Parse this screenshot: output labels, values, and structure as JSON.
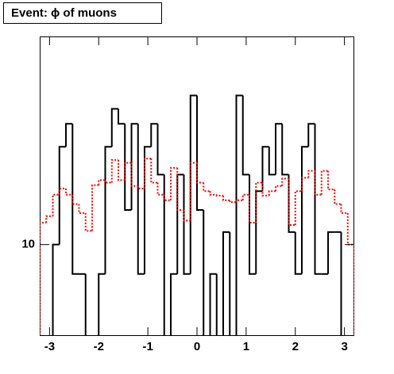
{
  "chart_data": {
    "type": "histogram",
    "title": "Event: ϕ of muons",
    "log_y": true,
    "bins": [
      -3.2,
      -3.067,
      -2.933,
      -2.8,
      -2.667,
      -2.533,
      -2.4,
      -2.267,
      -2.133,
      -2.0,
      -1.867,
      -1.733,
      -1.6,
      -1.467,
      -1.333,
      -1.2,
      -1.067,
      -0.933,
      -0.8,
      -0.667,
      -0.533,
      -0.4,
      -0.267,
      -0.133,
      0,
      0.133,
      0.267,
      0.4,
      0.533,
      0.667,
      0.8,
      0.933,
      1.067,
      1.2,
      1.333,
      1.467,
      1.6,
      1.733,
      1.867,
      2.0,
      2.133,
      2.267,
      2.4,
      2.533,
      2.667,
      2.8,
      2.933,
      3.067,
      3.2
    ],
    "series": [
      {
        "color": "#000000",
        "style": "solid",
        "values": [
          0,
          0,
          10,
          21,
          25,
          8,
          8,
          0,
          0,
          8,
          21,
          28,
          25,
          13,
          25,
          8,
          21,
          25,
          17,
          0,
          8,
          17,
          8,
          31,
          13,
          0,
          8,
          0,
          11,
          0,
          31,
          17,
          8,
          15,
          21,
          17,
          25,
          17,
          11,
          8,
          21,
          25,
          8,
          8,
          11,
          11,
          0,
          0
        ]
      },
      {
        "color": "#ff0000",
        "style": "dotted",
        "values": [
          11.8,
          12.4,
          14.6,
          15.3,
          14.6,
          13.6,
          12.7,
          11.1,
          15.7,
          16.3,
          16,
          19,
          16.3,
          18.6,
          15.6,
          15.3,
          19.2,
          16,
          14.6,
          14,
          17.9,
          13,
          12,
          18.6,
          16,
          15,
          14.6,
          14.5,
          14,
          13.8,
          14,
          14.6,
          11.8,
          16,
          14.5,
          15,
          15.6,
          16.5,
          11.6,
          15,
          16.6,
          17.5,
          14.6,
          17.5,
          15.2,
          13.6,
          12.7,
          10
        ]
      }
    ],
    "xlim": [
      -3.2,
      3.2
    ],
    "xticks": [
      -3,
      -2,
      -1,
      0,
      1,
      2,
      3
    ],
    "ylim": [
      5,
      48.5
    ],
    "yticks": [
      10
    ]
  }
}
